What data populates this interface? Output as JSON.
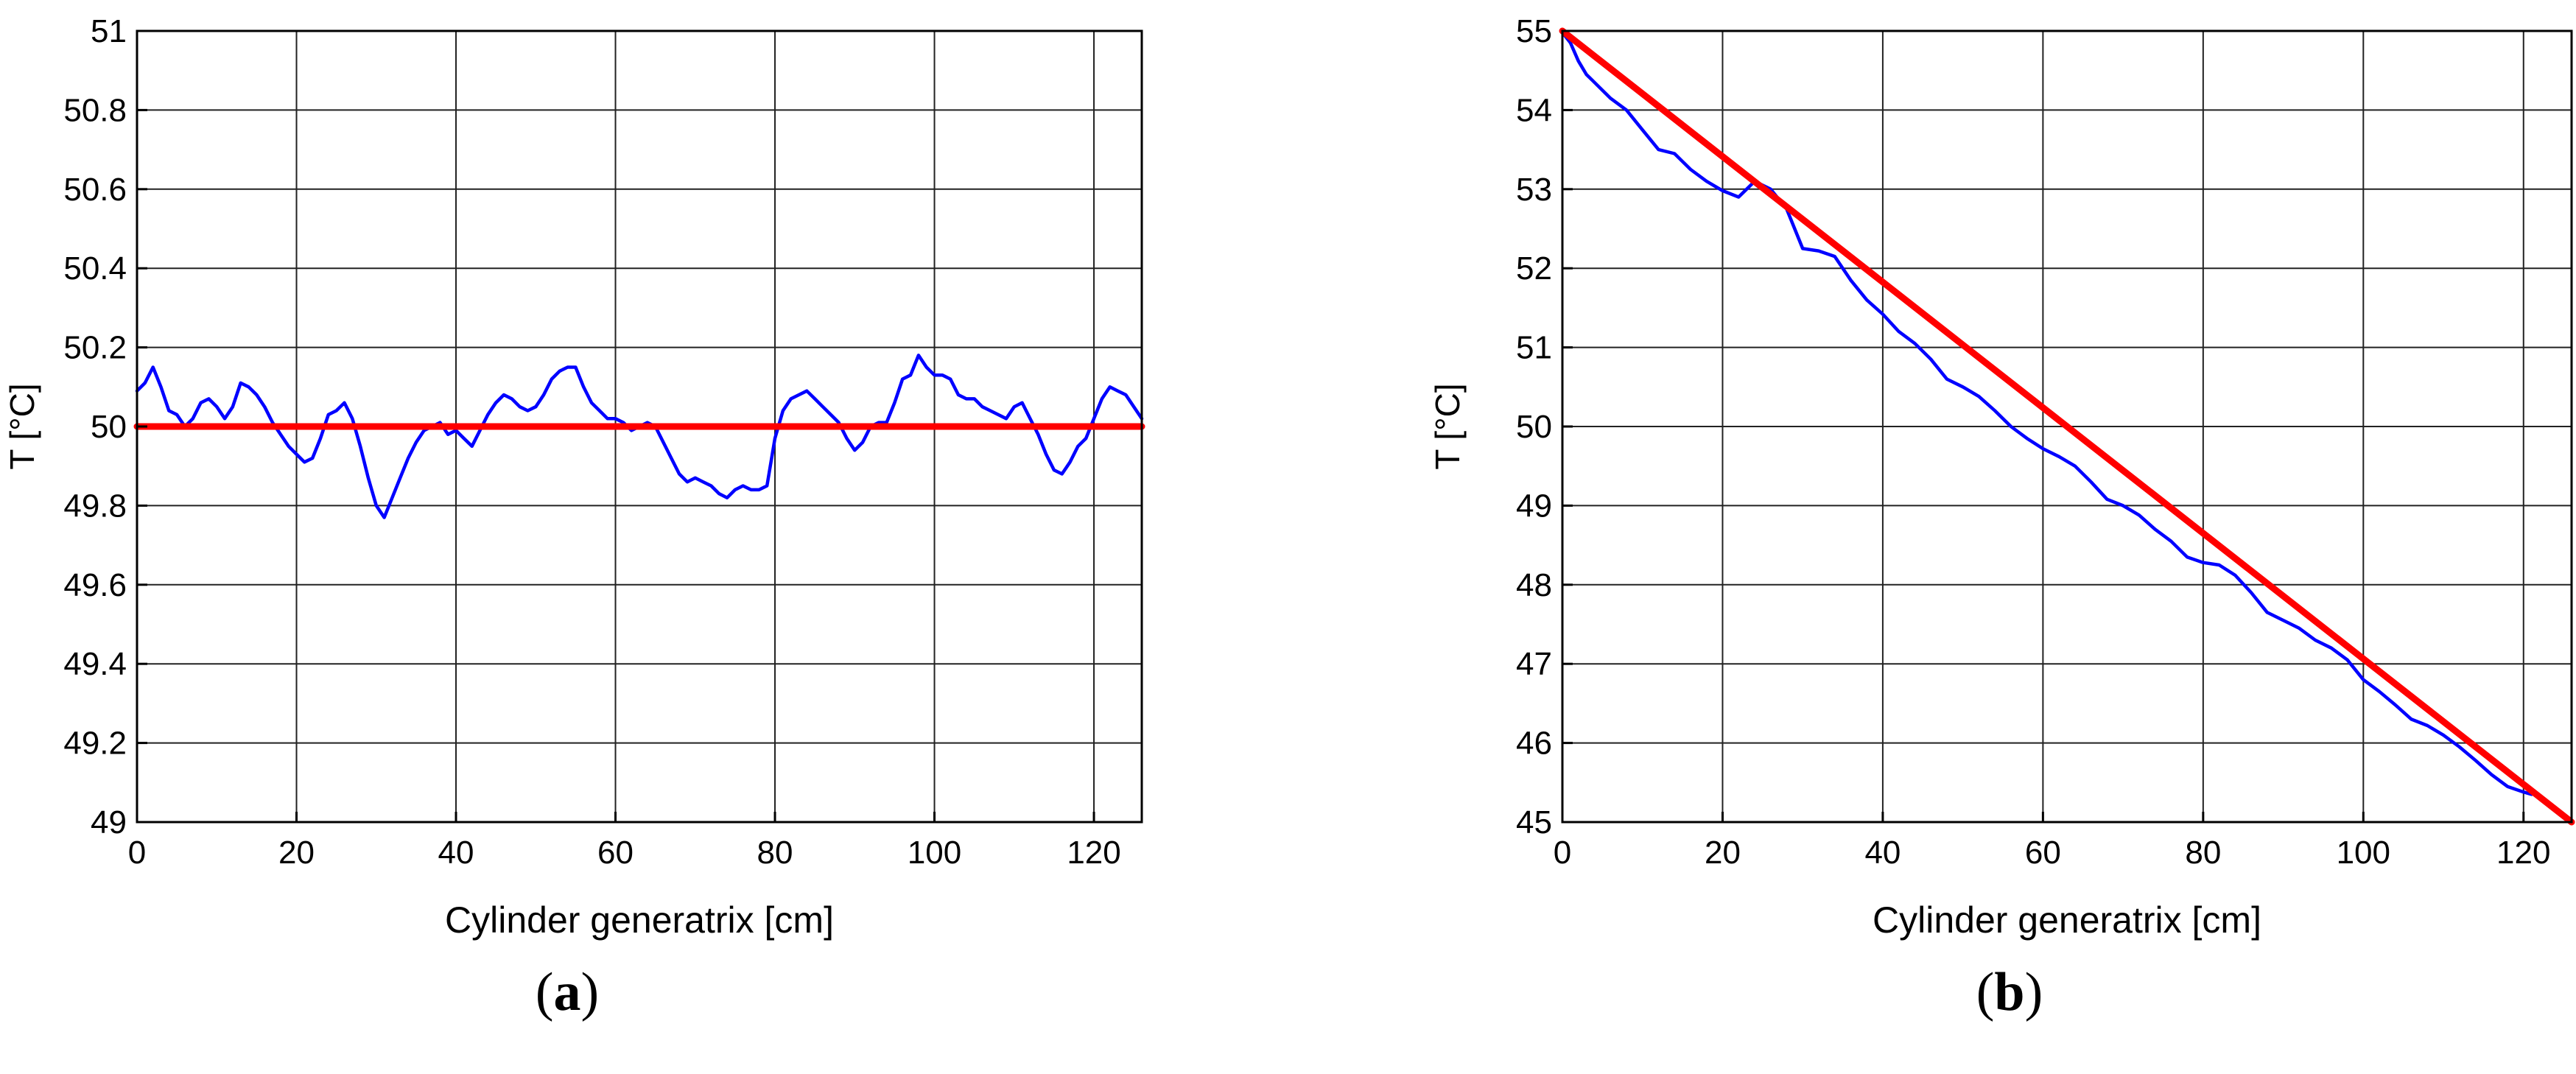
{
  "chart_data": [
    {
      "panel": "a",
      "type": "line",
      "xlabel": "Cylinder generatrix [cm]",
      "ylabel": "T [°C]",
      "xlim": [
        0,
        126
      ],
      "ylim": [
        49,
        51
      ],
      "xticks": [
        0,
        20,
        40,
        60,
        80,
        100,
        120
      ],
      "yticks": [
        49,
        49.2,
        49.4,
        49.6,
        49.8,
        50,
        50.2,
        50.4,
        50.6,
        50.8,
        51
      ],
      "ytick_labels": [
        "49",
        "49.2",
        "49.4",
        "49.6",
        "49.8",
        "50",
        "50.2",
        "50.4",
        "50.6",
        "50.8",
        "51"
      ],
      "grid": true,
      "series": [
        {
          "color": "#0000ff",
          "x": [
            0,
            1,
            2,
            3,
            4,
            5,
            6,
            7,
            8,
            9,
            10,
            11,
            12,
            13,
            14,
            15,
            16,
            17,
            18,
            19,
            20,
            21,
            22,
            23,
            24,
            25,
            26,
            27,
            28,
            29,
            30,
            31,
            32,
            33,
            34,
            35,
            36,
            37,
            38,
            39,
            40,
            41,
            42,
            43,
            44,
            45,
            46,
            47,
            48,
            49,
            50,
            51,
            52,
            53,
            54,
            55,
            56,
            57,
            58,
            59,
            60,
            61,
            62,
            63,
            64,
            65,
            66,
            67,
            68,
            69,
            70,
            71,
            72,
            73,
            74,
            75,
            76,
            77,
            78,
            79,
            80,
            81,
            82,
            83,
            84,
            85,
            86,
            87,
            88,
            89,
            90,
            91,
            92,
            93,
            94,
            95,
            96,
            97,
            98,
            99,
            100,
            101,
            102,
            103,
            104,
            105,
            106,
            107,
            108,
            109,
            110,
            111,
            112,
            113,
            114,
            115,
            116,
            117,
            118,
            119,
            120,
            121,
            122,
            123,
            124,
            125,
            126
          ],
          "y": [
            50.09,
            50.11,
            50.15,
            50.1,
            50.04,
            50.03,
            50.0,
            50.02,
            50.06,
            50.07,
            50.05,
            50.02,
            50.05,
            50.11,
            50.1,
            50.08,
            50.05,
            50.01,
            49.98,
            49.95,
            49.93,
            49.91,
            49.92,
            49.97,
            50.03,
            50.04,
            50.06,
            50.02,
            49.95,
            49.87,
            49.8,
            49.77,
            49.82,
            49.87,
            49.92,
            49.96,
            49.99,
            50.0,
            50.01,
            49.98,
            49.99,
            49.97,
            49.95,
            49.99,
            50.03,
            50.06,
            50.08,
            50.07,
            50.05,
            50.04,
            50.05,
            50.08,
            50.12,
            50.14,
            50.15,
            50.15,
            50.1,
            50.06,
            50.04,
            50.02,
            50.02,
            50.01,
            49.99,
            50.0,
            50.01,
            50.0,
            49.96,
            49.92,
            49.88,
            49.86,
            49.87,
            49.86,
            49.85,
            49.83,
            49.82,
            49.84,
            49.85,
            49.84,
            49.84,
            49.85,
            49.97,
            50.04,
            50.07,
            50.08,
            50.09,
            50.07,
            50.05,
            50.03,
            50.01,
            49.97,
            49.94,
            49.96,
            50.0,
            50.01,
            50.01,
            50.06,
            50.12,
            50.13,
            50.18,
            50.15,
            50.13,
            50.13,
            50.12,
            50.08,
            50.07,
            50.07,
            50.05,
            50.04,
            50.03,
            50.02,
            50.05,
            50.06,
            50.02,
            49.98,
            49.93,
            49.89,
            49.88,
            49.91,
            49.95,
            49.97,
            50.02,
            50.07,
            50.1,
            50.09,
            50.08,
            50.05,
            50.02
          ]
        },
        {
          "color": "#ff0000",
          "x": [
            0,
            126
          ],
          "y": [
            50.0,
            50.0
          ]
        }
      ]
    },
    {
      "panel": "b",
      "type": "line",
      "xlabel": "Cylinder generatrix [cm]",
      "ylabel": "T [°C]",
      "xlim": [
        0,
        126
      ],
      "ylim": [
        45,
        55
      ],
      "xticks": [
        0,
        20,
        40,
        60,
        80,
        100,
        120
      ],
      "yticks": [
        45,
        46,
        47,
        48,
        49,
        50,
        51,
        52,
        53,
        54,
        55
      ],
      "ytick_labels": [
        "45",
        "46",
        "47",
        "48",
        "49",
        "50",
        "51",
        "52",
        "53",
        "54",
        "55"
      ],
      "grid": true,
      "series": [
        {
          "color": "#0000ff",
          "x": [
            0,
            1,
            2,
            3,
            4,
            6,
            8,
            10,
            12,
            14,
            16,
            18,
            20,
            22,
            24,
            26,
            28,
            30,
            32,
            34,
            36,
            38,
            40,
            42,
            44,
            46,
            48,
            50,
            52,
            54,
            56,
            58,
            60,
            62,
            64,
            66,
            68,
            70,
            72,
            74,
            76,
            78,
            80,
            82,
            84,
            86,
            88,
            90,
            92,
            94,
            96,
            98,
            100,
            102,
            104,
            106,
            108,
            110,
            112,
            114,
            116,
            118,
            120,
            121
          ],
          "y": [
            54.98,
            54.85,
            54.62,
            54.45,
            54.35,
            54.15,
            54.0,
            53.75,
            53.5,
            53.45,
            53.25,
            53.1,
            52.98,
            52.9,
            53.1,
            53.0,
            52.75,
            52.25,
            52.22,
            52.15,
            51.85,
            51.6,
            51.42,
            51.2,
            51.05,
            50.85,
            50.6,
            50.5,
            50.38,
            50.2,
            50.0,
            49.85,
            49.72,
            49.62,
            49.5,
            49.3,
            49.08,
            49.0,
            48.88,
            48.7,
            48.55,
            48.35,
            48.28,
            48.25,
            48.12,
            47.9,
            47.65,
            47.55,
            47.45,
            47.3,
            47.2,
            47.05,
            46.8,
            46.65,
            46.48,
            46.3,
            46.22,
            46.1,
            45.95,
            45.78,
            45.6,
            45.45,
            45.38,
            45.35
          ]
        },
        {
          "color": "#ff0000",
          "x": [
            0,
            126
          ],
          "y": [
            55.0,
            45.0
          ]
        }
      ]
    }
  ],
  "captions": {
    "a": "a",
    "b": "b"
  }
}
